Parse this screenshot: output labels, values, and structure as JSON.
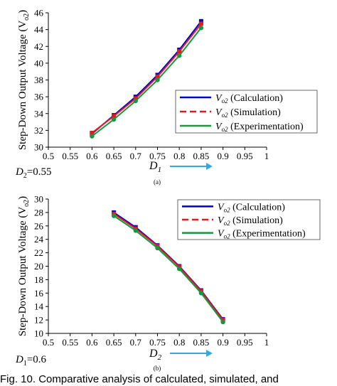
{
  "chart_data": [
    {
      "type": "line",
      "panel_label": "(a)",
      "ylabel": "Step-Down Output Voltage (V",
      "ylabel_sub": "o2",
      "ylabel_close": ")",
      "xlabel": "D",
      "xlabel_sub": "1",
      "param_label": "D",
      "param_sub": "2",
      "param_value": "=0.55",
      "xlim": [
        0.5,
        1.0
      ],
      "ylim": [
        30,
        46
      ],
      "xticks": [
        "0.5",
        "0.55",
        "0.6",
        "0.65",
        "0.7",
        "0.75",
        "0.8",
        "0.85",
        "0.9",
        "0.95",
        "1"
      ],
      "yticks": [
        "30",
        "32",
        "34",
        "36",
        "38",
        "40",
        "42",
        "44",
        "46"
      ],
      "grid": false,
      "legend_position": "bottom-right",
      "series": [
        {
          "name_v": "V",
          "name_sub": "o2",
          "name": " (Calculation)",
          "color": "#0000cc",
          "marker": "square",
          "x": [
            0.6,
            0.65,
            0.7,
            0.75,
            0.8,
            0.85
          ],
          "y": [
            31.6,
            33.8,
            36.0,
            38.6,
            41.6,
            45.0
          ]
        },
        {
          "name_v": "V",
          "name_sub": "o2",
          "name": " (Simulation)",
          "color": "#e31a1c",
          "marker": "square",
          "dashed": true,
          "x": [
            0.6,
            0.65,
            0.7,
            0.75,
            0.8,
            0.85
          ],
          "y": [
            31.7,
            33.7,
            35.8,
            38.4,
            41.4,
            44.7
          ]
        },
        {
          "name_v": "V",
          "name_sub": "o2",
          "name": " (Experimentation)",
          "color": "#1a9641",
          "marker": "circle",
          "x": [
            0.6,
            0.65,
            0.7,
            0.75,
            0.8,
            0.85
          ],
          "y": [
            31.3,
            33.3,
            35.5,
            38.0,
            40.9,
            44.2
          ]
        }
      ]
    },
    {
      "type": "line",
      "panel_label": "(b)",
      "ylabel": "Step-Down Output Voltage (V",
      "ylabel_sub": "o2",
      "ylabel_close": ")",
      "xlabel": "D",
      "xlabel_sub": "2",
      "param_label": "D",
      "param_sub": "1",
      "param_value": "=0.6",
      "xlim": [
        0.5,
        1.0
      ],
      "ylim": [
        10,
        30
      ],
      "xticks": [
        "0.5",
        "0.55",
        "0.6",
        "0.65",
        "0.7",
        "0.75",
        "0.8",
        "0.85",
        "0.9",
        "0.95",
        "1"
      ],
      "yticks": [
        "10",
        "12",
        "14",
        "16",
        "18",
        "20",
        "22",
        "24",
        "26",
        "28",
        "30"
      ],
      "grid": false,
      "legend_position": "top-right",
      "series": [
        {
          "name_v": "V",
          "name_sub": "o2",
          "name": " (Calculation)",
          "color": "#0000cc",
          "marker": "square",
          "x": [
            0.65,
            0.7,
            0.75,
            0.8,
            0.85,
            0.9
          ],
          "y": [
            28.0,
            25.8,
            23.1,
            20.0,
            16.4,
            12.1
          ]
        },
        {
          "name_v": "V",
          "name_sub": "o2",
          "name": " (Simulation)",
          "color": "#e31a1c",
          "marker": "square",
          "dashed": true,
          "x": [
            0.65,
            0.7,
            0.75,
            0.8,
            0.85,
            0.9
          ],
          "y": [
            27.8,
            25.6,
            23.0,
            19.9,
            16.3,
            12.0
          ]
        },
        {
          "name_v": "V",
          "name_sub": "o2",
          "name": " (Experimentation)",
          "color": "#1a9641",
          "marker": "circle",
          "x": [
            0.65,
            0.7,
            0.75,
            0.8,
            0.85,
            0.9
          ],
          "y": [
            27.5,
            25.3,
            22.7,
            19.6,
            16.0,
            11.7
          ]
        }
      ]
    }
  ],
  "caption": "Fig. 10.   Comparative analysis of calculated, simulated, and"
}
